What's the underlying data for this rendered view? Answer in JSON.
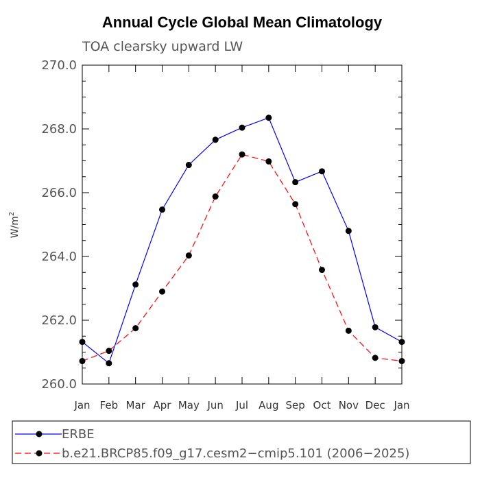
{
  "chart_data": {
    "type": "line",
    "title": "Annual Cycle Global Mean Climatology",
    "subtitle": "TOA clearsky upward LW",
    "ylabel_main": "W/m",
    "ylabel_sup": "2",
    "ylim": [
      260.0,
      270.0
    ],
    "yticks": [
      "260.0",
      "262.0",
      "264.0",
      "266.0",
      "268.0",
      "270.0"
    ],
    "categories": [
      "Jan",
      "Feb",
      "Mar",
      "Apr",
      "May",
      "Jun",
      "Jul",
      "Aug",
      "Sep",
      "Oct",
      "Nov",
      "Dec",
      "Jan"
    ],
    "series": [
      {
        "name": "ERBE",
        "color": "#0000ff",
        "dash": "solid",
        "values": [
          261.32,
          260.65,
          263.12,
          265.47,
          266.87,
          267.66,
          268.04,
          268.35,
          266.33,
          266.67,
          264.8,
          261.78,
          261.32
        ]
      },
      {
        "name": "b.e21.BRCP85.f09_g17.cesm2−cmip5.101 (2006−2025)",
        "color": "#ff0000",
        "dash": "dashed",
        "values": [
          260.72,
          261.04,
          261.75,
          262.9,
          264.03,
          265.88,
          267.2,
          266.98,
          265.64,
          263.58,
          261.67,
          260.82,
          260.72
        ]
      }
    ]
  }
}
